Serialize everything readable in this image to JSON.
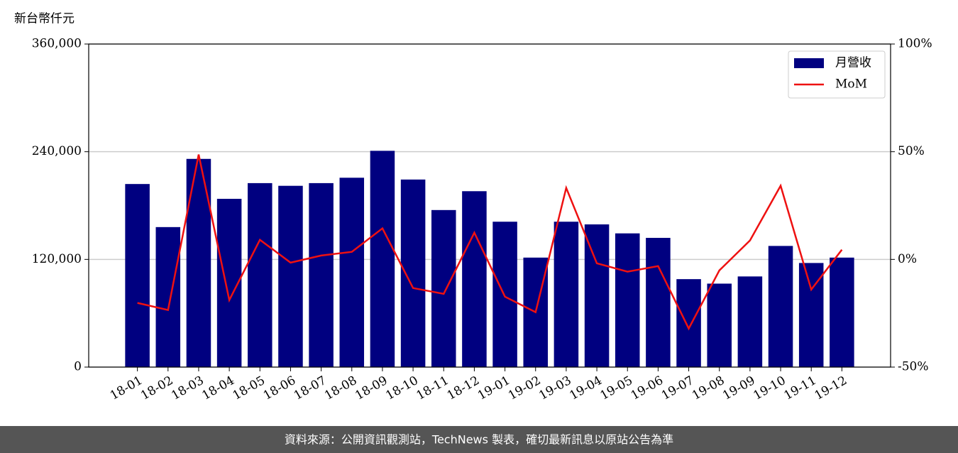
{
  "chart_data": {
    "type": "bar-line",
    "ylabel": "新台幣仟元",
    "categories": [
      "18-01",
      "18-02",
      "18-03",
      "18-04",
      "18-05",
      "18-06",
      "18-07",
      "18-08",
      "18-09",
      "18-10",
      "18-11",
      "18-12",
      "19-01",
      "19-02",
      "19-03",
      "19-04",
      "19-05",
      "19-06",
      "19-07",
      "19-08",
      "19-09",
      "19-10",
      "19-11",
      "19-12"
    ],
    "series": [
      {
        "name": "月營收",
        "type": "bar",
        "color": "#000080",
        "values": [
          204000,
          156000,
          232000,
          187500,
          205000,
          202000,
          205000,
          211000,
          241000,
          209000,
          175000,
          196000,
          162000,
          122000,
          162000,
          159000,
          149000,
          144000,
          98000,
          93000,
          101000,
          135000,
          116000,
          122000
        ]
      },
      {
        "name": "MoM",
        "type": "line",
        "axis": "y2",
        "color": "#ee1111",
        "values": [
          -20.2,
          -23.5,
          48.7,
          -18.9,
          9.1,
          -1.5,
          1.8,
          3.5,
          14.4,
          -13.3,
          -16.0,
          12.4,
          -17.3,
          -24.5,
          33.2,
          -1.8,
          -5.7,
          -3.1,
          -32.1,
          -5.1,
          8.8,
          34.2,
          -14.0,
          4.5
        ]
      }
    ],
    "ylim": [
      0,
      360000
    ],
    "yticks": [
      0,
      {
        "value": 120000,
        "label": "120,000"
      },
      {
        "value": 240000,
        "label": "240,000"
      },
      {
        "value": 360000,
        "label": "360,000"
      }
    ],
    "y2lim": [
      -50,
      100
    ],
    "y2ticks": [
      {
        "value": -50,
        "label": "-50%"
      },
      {
        "value": 0,
        "label": "0%"
      },
      {
        "value": 50,
        "label": "50%"
      },
      {
        "value": 100,
        "label": "100%"
      }
    ],
    "grid": true,
    "legend": "upper right"
  },
  "footer": "資料來源：公開資訊觀測站，TechNews 製表，確切最新訊息以原站公告為準"
}
